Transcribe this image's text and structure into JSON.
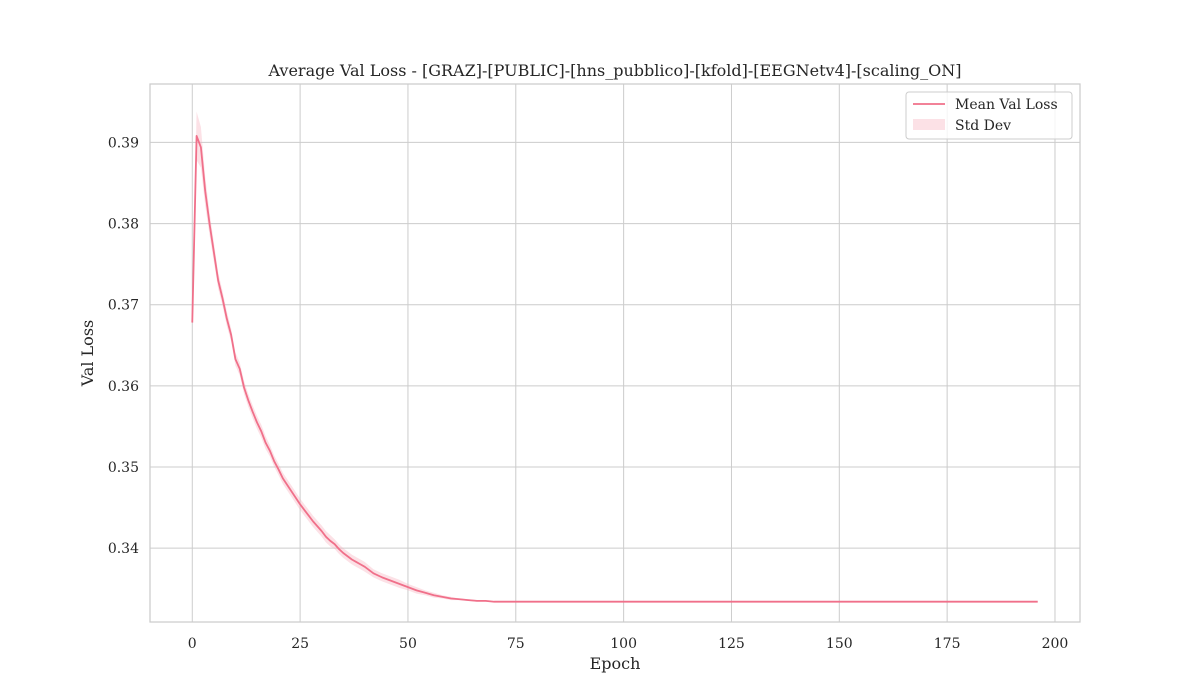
{
  "chart_data": {
    "type": "line",
    "title": "Average Val Loss - [GRAZ]-[PUBLIC]-[hns_pubblico]-[kfold]-[EEGNetv4]-[scaling_ON]",
    "xlabel": "Epoch",
    "ylabel": "Val Loss",
    "xlim": [
      -9.8,
      205.8
    ],
    "ylim": [
      0.3309,
      0.3972
    ],
    "xticks": [
      0,
      25,
      50,
      75,
      100,
      125,
      150,
      175,
      200
    ],
    "yticks": [
      0.34,
      0.35,
      0.36,
      0.37,
      0.38,
      0.39
    ],
    "xtick_labels": [
      "0",
      "25",
      "50",
      "75",
      "100",
      "125",
      "150",
      "175",
      "200"
    ],
    "ytick_labels": [
      "0.34",
      "0.35",
      "0.36",
      "0.37",
      "0.38",
      "0.39"
    ],
    "grid": true,
    "legend_position": "top-right",
    "legend": {
      "mean_label": "Mean Val Loss",
      "std_label": "Std Dev"
    },
    "colors": {
      "mean_line": "#f0708a",
      "std_band": "#f7a8b8"
    },
    "series": [
      {
        "name": "Mean Val Loss",
        "x": [
          0,
          1,
          2,
          3,
          4,
          5,
          6,
          7,
          8,
          9,
          10,
          11,
          12,
          13,
          14,
          15,
          16,
          17,
          18,
          19,
          20,
          21,
          22,
          23,
          24,
          25,
          26,
          27,
          28,
          29,
          30,
          31,
          32,
          33,
          34,
          35,
          36,
          37,
          38,
          39,
          40,
          42,
          44,
          46,
          48,
          50,
          52,
          54,
          56,
          58,
          60,
          62,
          64,
          66,
          68,
          70,
          75,
          80,
          90,
          100,
          110,
          120,
          130,
          140,
          150,
          160,
          170,
          180,
          190,
          196
        ],
        "values": [
          0.3678,
          0.3908,
          0.3894,
          0.384,
          0.38,
          0.3765,
          0.373,
          0.3708,
          0.3683,
          0.3663,
          0.3633,
          0.3621,
          0.3598,
          0.3582,
          0.3568,
          0.3555,
          0.3544,
          0.353,
          0.352,
          0.3507,
          0.3497,
          0.3486,
          0.3478,
          0.347,
          0.3462,
          0.3454,
          0.3447,
          0.344,
          0.3433,
          0.3427,
          0.3421,
          0.3414,
          0.3409,
          0.3405,
          0.3399,
          0.3394,
          0.339,
          0.3386,
          0.3383,
          0.338,
          0.3377,
          0.3369,
          0.3364,
          0.336,
          0.3356,
          0.3352,
          0.3348,
          0.3345,
          0.3342,
          0.334,
          0.3338,
          0.3337,
          0.3336,
          0.3335,
          0.3335,
          0.3334,
          0.3334,
          0.3334,
          0.3334,
          0.3334,
          0.3334,
          0.3334,
          0.3334,
          0.3334,
          0.3334,
          0.3334,
          0.3334,
          0.3334,
          0.3334,
          0.3334
        ],
        "std": [
          0.0003,
          0.003,
          0.0025,
          0.0018,
          0.0014,
          0.0012,
          0.001,
          0.0009,
          0.0009,
          0.0008,
          0.0008,
          0.0008,
          0.0008,
          0.0008,
          0.0008,
          0.0008,
          0.0008,
          0.0008,
          0.0007,
          0.0007,
          0.0007,
          0.0007,
          0.0007,
          0.0007,
          0.0007,
          0.0007,
          0.0007,
          0.0007,
          0.0007,
          0.0007,
          0.0007,
          0.0007,
          0.0007,
          0.0006,
          0.0006,
          0.0006,
          0.0006,
          0.0006,
          0.0006,
          0.0006,
          0.0006,
          0.0005,
          0.0005,
          0.0005,
          0.0005,
          0.0004,
          0.0004,
          0.0003,
          0.0003,
          0.0002,
          0.0002,
          0.0001,
          0.0001,
          0.0001,
          0.0001,
          0.0,
          0.0,
          0.0,
          0.0,
          0.0,
          0.0,
          0.0,
          0.0,
          0.0,
          0.0,
          0.0,
          0.0,
          0.0,
          0.0,
          0.0
        ]
      }
    ]
  }
}
